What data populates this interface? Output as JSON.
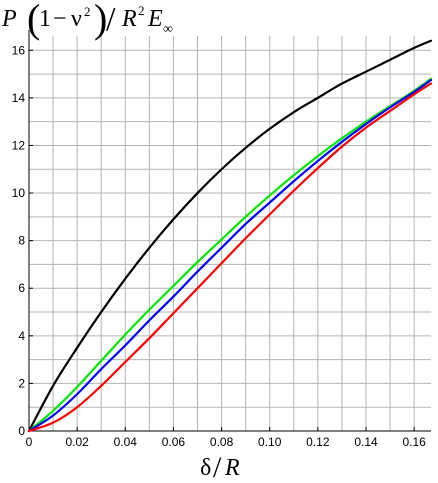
{
  "chart_data": {
    "type": "line",
    "title": "",
    "ylabel": "P(1−ν²)/R²E∞",
    "xlabel": "δ/R",
    "ylabel_parts": {
      "p": "P",
      "one": "1",
      "minus": "−",
      "nu": "ν",
      "sq": "2",
      "slash": "/",
      "r": "R",
      "r_sq": "2",
      "e": "E",
      "inf": "∞"
    },
    "xlabel_parts": {
      "delta": "δ",
      "slash": "/",
      "r": "R"
    },
    "xlim": [
      0,
      0.167
    ],
    "ylim": [
      0,
      16.6
    ],
    "grid": true,
    "x_ticks": [
      0,
      0.02,
      0.04,
      0.06,
      0.08,
      0.1,
      0.12,
      0.14,
      0.16
    ],
    "x_tick_labels": [
      "0",
      "0.02",
      "0.04",
      "0.06",
      "0.08",
      "0.10",
      "0.12",
      "0.14",
      "0.16"
    ],
    "y_ticks": [
      0,
      2,
      4,
      6,
      8,
      10,
      12,
      14,
      16
    ],
    "y_tick_labels": [
      "0",
      "2",
      "4",
      "6",
      "8",
      "10",
      "12",
      "14",
      "16"
    ],
    "series": [
      {
        "color": "#000000",
        "x": [
          0,
          0.01,
          0.02,
          0.03,
          0.04,
          0.05,
          0.06,
          0.07,
          0.08,
          0.09,
          0.1,
          0.11,
          0.12,
          0.13,
          0.14,
          0.15,
          0.16,
          0.167
        ],
        "y": [
          0,
          1.9,
          3.5,
          5.0,
          6.4,
          7.7,
          8.9,
          10.0,
          11.0,
          11.9,
          12.7,
          13.4,
          14.0,
          14.6,
          15.1,
          15.6,
          16.1,
          16.4
        ]
      },
      {
        "color": "#00e600",
        "x": [
          0,
          0.01,
          0.02,
          0.03,
          0.04,
          0.05,
          0.06,
          0.07,
          0.08,
          0.09,
          0.1,
          0.11,
          0.12,
          0.13,
          0.14,
          0.15,
          0.16,
          0.167
        ],
        "y": [
          0,
          0.85,
          1.85,
          2.95,
          4.05,
          5.1,
          6.1,
          7.1,
          8.05,
          9.0,
          9.9,
          10.75,
          11.55,
          12.3,
          13.0,
          13.65,
          14.3,
          14.8
        ]
      },
      {
        "color": "#0000ff",
        "x": [
          0,
          0.01,
          0.02,
          0.03,
          0.04,
          0.05,
          0.06,
          0.07,
          0.08,
          0.09,
          0.1,
          0.11,
          0.12,
          0.13,
          0.14,
          0.15,
          0.16,
          0.167
        ],
        "y": [
          0,
          0.65,
          1.55,
          2.6,
          3.6,
          4.65,
          5.65,
          6.7,
          7.7,
          8.7,
          9.6,
          10.5,
          11.35,
          12.15,
          12.9,
          13.6,
          14.25,
          14.75
        ]
      },
      {
        "color": "#ff0000",
        "x": [
          0,
          0.01,
          0.02,
          0.03,
          0.04,
          0.05,
          0.06,
          0.07,
          0.08,
          0.09,
          0.1,
          0.11,
          0.12,
          0.13,
          0.14,
          0.15,
          0.16,
          0.167
        ],
        "y": [
          0,
          0.35,
          1.0,
          1.9,
          2.9,
          3.9,
          4.95,
          6.0,
          7.05,
          8.1,
          9.1,
          10.1,
          11.05,
          11.95,
          12.75,
          13.45,
          14.15,
          14.6
        ]
      }
    ]
  }
}
